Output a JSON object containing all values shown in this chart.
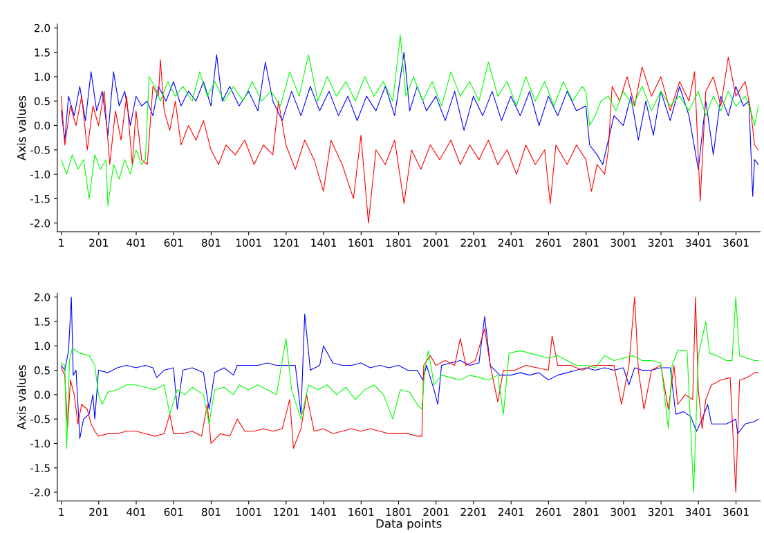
{
  "chart_data": [
    {
      "type": "line",
      "ylabel": "Axis values",
      "xlim": [
        -20,
        3730
      ],
      "ylim": [
        -2.18,
        2.08
      ],
      "grid": false,
      "xticks": [
        1,
        201,
        401,
        601,
        801,
        1001,
        1201,
        1401,
        1601,
        1801,
        2001,
        2201,
        2401,
        2601,
        2801,
        3001,
        3201,
        3401,
        3601
      ],
      "yticks": [
        {
          "value": -2,
          "label": "-2.0"
        },
        {
          "value": -1.5,
          "label": "-1.5"
        },
        {
          "value": -1,
          "label": "-1.0"
        },
        {
          "value": -0.5,
          "label": "-0.5"
        },
        {
          "value": 0,
          "label": "0.0"
        },
        {
          "value": 0.5,
          "label": "0.5"
        },
        {
          "value": 1,
          "label": "1.0"
        },
        {
          "value": 1.5,
          "label": "1.5"
        },
        {
          "value": 2,
          "label": "2.0"
        }
      ],
      "series": [
        {
          "color": "#0000ff",
          "x": [
            1,
            20,
            40,
            70,
            100,
            130,
            160,
            190,
            220,
            250,
            280,
            310,
            340,
            370,
            400,
            430,
            460,
            490,
            520,
            560,
            600,
            640,
            680,
            720,
            760,
            800,
            830,
            860,
            900,
            950,
            1000,
            1050,
            1090,
            1130,
            1180,
            1230,
            1280,
            1330,
            1380,
            1430,
            1480,
            1530,
            1580,
            1630,
            1680,
            1730,
            1780,
            1830,
            1860,
            1900,
            1950,
            2000,
            2050,
            2100,
            2150,
            2200,
            2250,
            2300,
            2350,
            2400,
            2450,
            2500,
            2550,
            2600,
            2650,
            2700,
            2750,
            2800,
            2820,
            2860,
            2890,
            2920,
            2950,
            3000,
            3040,
            3080,
            3120,
            3160,
            3200,
            3250,
            3300,
            3350,
            3400,
            3440,
            3480,
            3520,
            3560,
            3600,
            3640,
            3670,
            3690,
            3700,
            3720
          ],
          "values": [
            0.3,
            -0.3,
            0.6,
            0.2,
            0.8,
            0.1,
            1.1,
            0.3,
            0.7,
            -0.2,
            1.1,
            0.4,
            0.7,
            0.0,
            0.6,
            0.4,
            0.5,
            0.2,
            0.8,
            0.5,
            0.9,
            0.4,
            0.7,
            0.5,
            0.9,
            0.4,
            1.45,
            0.5,
            0.8,
            0.4,
            0.7,
            0.3,
            1.3,
            0.5,
            0.1,
            0.7,
            0.2,
            0.8,
            0.3,
            0.7,
            0.2,
            0.6,
            0.1,
            0.6,
            0.3,
            0.8,
            0.2,
            1.5,
            0.3,
            0.8,
            0.3,
            0.6,
            0.1,
            0.7,
            -0.1,
            0.6,
            0.2,
            0.7,
            0.1,
            0.6,
            0.2,
            0.7,
            0.0,
            0.6,
            0.2,
            0.7,
            0.3,
            0.4,
            -0.4,
            -0.6,
            -0.8,
            -0.3,
            0.2,
            0.0,
            0.6,
            -0.3,
            0.5,
            -0.2,
            0.7,
            0.1,
            0.8,
            0.2,
            -0.9,
            0.5,
            -0.6,
            0.6,
            0.2,
            0.8,
            0.4,
            0.5,
            -1.45,
            -0.7,
            -0.8
          ]
        },
        {
          "color": "#ff0000",
          "x": [
            1,
            20,
            50,
            80,
            110,
            140,
            170,
            200,
            230,
            260,
            290,
            320,
            350,
            380,
            400,
            430,
            460,
            490,
            520,
            530,
            550,
            580,
            610,
            640,
            680,
            720,
            760,
            800,
            840,
            880,
            930,
            980,
            1030,
            1080,
            1130,
            1160,
            1200,
            1250,
            1300,
            1350,
            1400,
            1440,
            1500,
            1560,
            1600,
            1640,
            1680,
            1730,
            1780,
            1830,
            1870,
            1920,
            1970,
            2020,
            2080,
            2130,
            2180,
            2230,
            2280,
            2330,
            2380,
            2430,
            2480,
            2530,
            2580,
            2610,
            2640,
            2700,
            2750,
            2800,
            2830,
            2860,
            2900,
            2920,
            2940,
            2980,
            3020,
            3060,
            3100,
            3150,
            3200,
            3250,
            3300,
            3350,
            3380,
            3410,
            3440,
            3480,
            3520,
            3560,
            3600,
            3650,
            3680,
            3700,
            3720
          ],
          "values": [
            0.6,
            -0.4,
            0.4,
            0.0,
            0.6,
            -0.5,
            0.4,
            0.0,
            0.7,
            -0.8,
            0.3,
            -0.3,
            0.6,
            -0.8,
            0.3,
            -0.7,
            -0.8,
            0.8,
            0.6,
            1.35,
            0.3,
            -0.1,
            0.5,
            -0.4,
            0.0,
            -0.3,
            0.1,
            -0.5,
            -0.8,
            -0.4,
            -0.6,
            -0.3,
            -0.8,
            -0.4,
            -0.6,
            0.5,
            -0.4,
            -0.9,
            -0.3,
            -0.7,
            -1.35,
            -0.3,
            -0.8,
            -1.5,
            -0.2,
            -2.0,
            -0.5,
            -0.8,
            -0.3,
            -1.6,
            -0.5,
            -0.9,
            -0.4,
            -0.7,
            -0.3,
            -0.8,
            -0.4,
            -0.7,
            -0.3,
            -0.8,
            -0.5,
            -1.0,
            -0.4,
            -0.8,
            -0.5,
            -1.6,
            -0.4,
            -0.8,
            -0.4,
            -0.7,
            -1.35,
            -0.8,
            -1.0,
            -0.5,
            0.8,
            0.5,
            1.0,
            0.4,
            1.2,
            0.6,
            1.0,
            0.3,
            0.9,
            0.5,
            1.1,
            -1.55,
            0.7,
            1.0,
            0.4,
            1.4,
            0.6,
            0.9,
            0.3,
            -0.4,
            -0.5
          ]
        },
        {
          "color": "#00ff00",
          "x": [
            1,
            30,
            60,
            90,
            120,
            150,
            180,
            210,
            240,
            250,
            280,
            310,
            340,
            370,
            400,
            430,
            450,
            470,
            500,
            530,
            570,
            610,
            650,
            700,
            740,
            780,
            820,
            870,
            920,
            970,
            1020,
            1070,
            1120,
            1170,
            1220,
            1270,
            1320,
            1370,
            1420,
            1470,
            1520,
            1570,
            1620,
            1670,
            1720,
            1770,
            1810,
            1840,
            1880,
            1930,
            1980,
            2030,
            2080,
            2130,
            2180,
            2230,
            2280,
            2330,
            2380,
            2430,
            2480,
            2530,
            2580,
            2630,
            2680,
            2730,
            2780,
            2800,
            2820,
            2850,
            2880,
            2920,
            2960,
            3000,
            3050,
            3100,
            3150,
            3200,
            3250,
            3300,
            3350,
            3400,
            3440,
            3480,
            3520,
            3560,
            3600,
            3650,
            3680,
            3700,
            3720
          ],
          "values": [
            -0.7,
            -1.0,
            -0.6,
            -0.9,
            -0.7,
            -1.5,
            -0.6,
            -0.9,
            -0.7,
            -1.65,
            -0.8,
            -1.1,
            -0.7,
            -1.0,
            -0.5,
            -0.8,
            -0.7,
            1.0,
            0.8,
            0.5,
            0.9,
            0.6,
            0.8,
            0.5,
            1.1,
            0.6,
            0.9,
            0.5,
            0.8,
            0.5,
            0.9,
            0.5,
            0.7,
            0.4,
            1.1,
            0.6,
            1.45,
            0.5,
            1.0,
            0.6,
            0.9,
            0.5,
            1.0,
            0.6,
            0.9,
            0.5,
            1.85,
            0.6,
            1.0,
            0.5,
            0.9,
            0.4,
            1.1,
            0.6,
            0.9,
            0.5,
            1.3,
            0.6,
            0.9,
            0.4,
            1.0,
            0.5,
            0.9,
            0.4,
            0.9,
            0.5,
            0.8,
            0.7,
            0.0,
            0.2,
            0.5,
            0.6,
            0.3,
            0.7,
            0.4,
            0.8,
            0.3,
            0.7,
            0.4,
            0.6,
            0.3,
            0.7,
            0.2,
            0.6,
            0.3,
            0.7,
            0.4,
            0.6,
            0.3,
            0.0,
            0.4
          ]
        }
      ]
    },
    {
      "type": "line",
      "xlabel": "Data points",
      "ylabel": "Axis values",
      "xlim": [
        -20,
        3730
      ],
      "ylim": [
        -2.18,
        2.08
      ],
      "xticks": [
        1,
        201,
        401,
        601,
        801,
        1001,
        1201,
        1401,
        1601,
        1801,
        2001,
        2201,
        2401,
        2601,
        2801,
        3001,
        3201,
        3401,
        3601
      ],
      "yticks": [
        {
          "value": -2,
          "label": "-2.0"
        },
        {
          "value": -1.5,
          "label": "-1.5"
        },
        {
          "value": -1,
          "label": "-1.0"
        },
        {
          "value": -0.5,
          "label": "-0.5"
        },
        {
          "value": 0,
          "label": "0.0"
        },
        {
          "value": 0.5,
          "label": "0.5"
        },
        {
          "value": 1,
          "label": "1.0"
        },
        {
          "value": 1.5,
          "label": "1.5"
        },
        {
          "value": 2,
          "label": "2.0"
        }
      ],
      "grid": false,
      "series": [
        {
          "color": "#0000ff",
          "x": [
            1,
            20,
            40,
            55,
            65,
            80,
            100,
            120,
            150,
            170,
            180,
            200,
            250,
            300,
            350,
            400,
            450,
            490,
            510,
            550,
            600,
            620,
            650,
            700,
            760,
            790,
            820,
            870,
            920,
            940,
            1000,
            1050,
            1100,
            1150,
            1200,
            1250,
            1280,
            1300,
            1330,
            1380,
            1400,
            1450,
            1500,
            1550,
            1600,
            1650,
            1700,
            1750,
            1800,
            1850,
            1900,
            1930,
            1950,
            1990,
            2010,
            2030,
            2080,
            2130,
            2180,
            2230,
            2260,
            2290,
            2340,
            2400,
            2450,
            2500,
            2550,
            2600,
            2650,
            2700,
            2750,
            2800,
            2850,
            2900,
            2950,
            3000,
            3030,
            3060,
            3100,
            3150,
            3200,
            3250,
            3280,
            3320,
            3360,
            3390,
            3420,
            3450,
            3470,
            3500,
            3550,
            3600,
            3610,
            3650,
            3700,
            3720
          ],
          "values": [
            0.6,
            0.5,
            0.9,
            2.0,
            0.4,
            0.5,
            -0.9,
            -0.5,
            -0.4,
            0.0,
            -0.5,
            0.5,
            0.45,
            0.55,
            0.6,
            0.55,
            0.6,
            0.55,
            0.35,
            0.5,
            0.55,
            -0.3,
            0.5,
            0.55,
            0.45,
            -0.3,
            0.45,
            0.55,
            0.4,
            0.6,
            0.6,
            0.6,
            0.65,
            0.6,
            0.6,
            0.6,
            -0.4,
            1.65,
            0.5,
            0.6,
            1.0,
            0.65,
            0.6,
            0.6,
            0.65,
            0.55,
            0.6,
            0.55,
            0.6,
            0.5,
            0.5,
            0.3,
            0.6,
            0.1,
            -0.2,
            0.6,
            0.65,
            0.7,
            0.6,
            0.65,
            1.6,
            0.6,
            0.4,
            0.4,
            0.45,
            0.4,
            0.45,
            0.3,
            0.4,
            0.45,
            0.5,
            0.55,
            0.5,
            0.55,
            0.5,
            0.55,
            0.2,
            0.55,
            0.5,
            0.5,
            0.55,
            0.55,
            -0.4,
            -0.35,
            -0.45,
            -0.75,
            -0.5,
            -0.2,
            -0.6,
            -0.6,
            -0.6,
            -0.5,
            -0.8,
            -0.6,
            -0.55,
            -0.5
          ]
        },
        {
          "color": "#ff0000",
          "x": [
            1,
            20,
            35,
            50,
            70,
            90,
            110,
            140,
            160,
            180,
            200,
            250,
            300,
            350,
            400,
            450,
            500,
            550,
            580,
            600,
            650,
            700,
            750,
            780,
            800,
            850,
            900,
            940,
            980,
            1030,
            1080,
            1130,
            1180,
            1220,
            1240,
            1280,
            1310,
            1350,
            1400,
            1450,
            1500,
            1550,
            1600,
            1650,
            1700,
            1750,
            1800,
            1850,
            1900,
            1925,
            1935,
            1970,
            2000,
            2050,
            2100,
            2130,
            2160,
            2210,
            2260,
            2290,
            2330,
            2360,
            2420,
            2480,
            2540,
            2600,
            2620,
            2650,
            2720,
            2780,
            2840,
            2900,
            2950,
            2990,
            3030,
            3060,
            3080,
            3110,
            3150,
            3200,
            3240,
            3270,
            3290,
            3330,
            3370,
            3385,
            3400,
            3420,
            3440,
            3470,
            3520,
            3570,
            3600,
            3620,
            3660,
            3700,
            3720
          ],
          "values": [
            0.55,
            0.4,
            -0.7,
            0.3,
            0.0,
            -0.6,
            -0.2,
            -0.3,
            -0.6,
            -0.75,
            -0.85,
            -0.8,
            -0.8,
            -0.75,
            -0.75,
            -0.8,
            -0.85,
            -0.8,
            -0.4,
            -0.8,
            -0.8,
            -0.75,
            -0.85,
            -0.2,
            -1.0,
            -0.8,
            -0.85,
            -0.5,
            -0.75,
            -0.75,
            -0.7,
            -0.75,
            -0.7,
            -0.1,
            -1.1,
            -0.7,
            0.0,
            -0.75,
            -0.7,
            -0.8,
            -0.75,
            -0.7,
            -0.75,
            -0.7,
            -0.75,
            -0.8,
            -0.8,
            -0.8,
            -0.85,
            -0.85,
            0.6,
            0.8,
            0.6,
            0.7,
            0.6,
            1.15,
            0.6,
            0.7,
            1.35,
            0.6,
            -0.15,
            0.5,
            0.5,
            0.6,
            0.55,
            0.5,
            1.2,
            0.6,
            0.6,
            0.5,
            0.6,
            0.6,
            0.6,
            -0.2,
            0.6,
            2.0,
            0.5,
            -0.3,
            0.5,
            0.6,
            -0.3,
            0.6,
            -0.2,
            0.0,
            -0.1,
            2.0,
            0.1,
            -0.7,
            -0.1,
            0.2,
            0.3,
            0.35,
            -2.0,
            0.3,
            0.35,
            0.45,
            0.45
          ]
        },
        {
          "color": "#00ff00",
          "x": [
            1,
            20,
            30,
            45,
            60,
            100,
            150,
            180,
            200,
            220,
            250,
            300,
            350,
            400,
            450,
            500,
            550,
            580,
            620,
            660,
            700,
            760,
            790,
            820,
            870,
            920,
            950,
            1000,
            1050,
            1100,
            1150,
            1200,
            1230,
            1280,
            1320,
            1370,
            1420,
            1470,
            1520,
            1570,
            1620,
            1670,
            1720,
            1770,
            1810,
            1860,
            1900,
            1925,
            1940,
            1960,
            1990,
            2030,
            2080,
            2130,
            2180,
            2230,
            2280,
            2330,
            2360,
            2390,
            2450,
            2500,
            2550,
            2600,
            2650,
            2700,
            2750,
            2800,
            2850,
            2900,
            2950,
            3000,
            3050,
            3100,
            3150,
            3200,
            3240,
            3260,
            3290,
            3340,
            3375,
            3400,
            3440,
            3460,
            3500,
            3550,
            3580,
            3600,
            3620,
            3660,
            3700,
            3720
          ],
          "values": [
            0.65,
            0.6,
            -1.1,
            0.7,
            0.95,
            0.85,
            0.8,
            0.6,
            0.0,
            -0.2,
            0.05,
            0.1,
            0.2,
            0.2,
            0.15,
            0.1,
            0.2,
            -0.4,
            0.1,
            0.0,
            0.15,
            0.0,
            -0.6,
            0.1,
            0.15,
            0.0,
            0.2,
            0.1,
            0.2,
            0.1,
            0.0,
            1.15,
            0.1,
            -0.5,
            0.2,
            0.1,
            0.2,
            0.0,
            0.15,
            -0.1,
            0.1,
            0.2,
            0.0,
            -0.5,
            0.1,
            0.05,
            -0.2,
            -0.3,
            0.5,
            0.9,
            0.2,
            0.4,
            0.35,
            0.3,
            0.4,
            0.35,
            0.3,
            0.4,
            -0.4,
            0.85,
            0.9,
            0.85,
            0.8,
            0.75,
            0.8,
            0.7,
            0.6,
            0.6,
            0.55,
            0.8,
            0.7,
            0.75,
            0.8,
            0.7,
            0.7,
            0.65,
            -0.7,
            0.6,
            0.9,
            0.9,
            -2.0,
            0.8,
            1.5,
            0.85,
            0.8,
            0.7,
            0.7,
            2.0,
            0.8,
            0.75,
            0.7,
            0.7
          ]
        }
      ]
    }
  ]
}
